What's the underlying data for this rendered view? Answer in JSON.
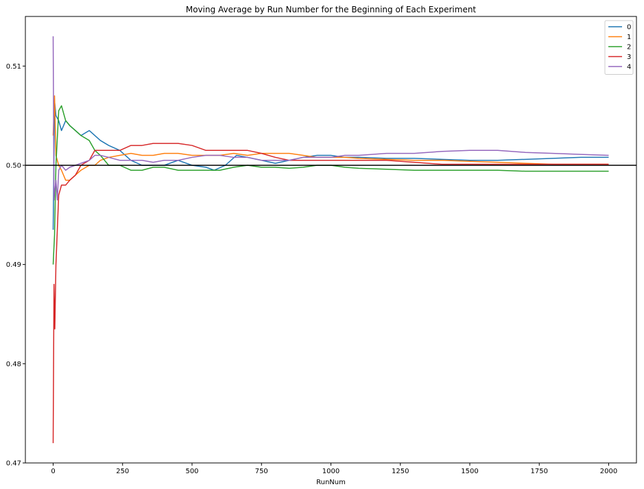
{
  "chart_data": {
    "type": "line",
    "title": "Moving Average by Run Number for the Beginning of Each Experiment",
    "xlabel": "RunNum",
    "ylabel": "",
    "xlim": [
      -100,
      2100
    ],
    "ylim": [
      0.47,
      0.515
    ],
    "xticks": [
      0,
      250,
      500,
      750,
      1000,
      1250,
      1500,
      1750,
      2000
    ],
    "xtick_labels": [
      "0",
      "250",
      "500",
      "750",
      "1000",
      "1250",
      "1500",
      "1750",
      "2000"
    ],
    "yticks": [
      0.47,
      0.48,
      0.49,
      0.5,
      0.51
    ],
    "ytick_labels": [
      "0.47",
      "0.48",
      "0.49",
      "0.50",
      "0.51"
    ],
    "reference_line": {
      "y": 0.5,
      "color": "#000000"
    },
    "grid": false,
    "legend_position": "top-right",
    "series": [
      {
        "name": "0",
        "color": "#1f77b4",
        "x": [
          0,
          5,
          10,
          20,
          30,
          45,
          60,
          80,
          100,
          130,
          150,
          170,
          200,
          240,
          280,
          320,
          360,
          400,
          450,
          500,
          550,
          580,
          620,
          660,
          700,
          750,
          800,
          850,
          900,
          950,
          1000,
          1050,
          1100,
          1200,
          1300,
          1400,
          1500,
          1600,
          1700,
          1800,
          1900,
          2000
        ],
        "y": [
          0.4935,
          0.5065,
          0.505,
          0.5045,
          0.5035,
          0.5045,
          0.504,
          0.5035,
          0.503,
          0.5035,
          0.503,
          0.5025,
          0.502,
          0.5015,
          0.5005,
          0.5,
          0.5,
          0.5,
          0.5005,
          0.5,
          0.4998,
          0.4995,
          0.5,
          0.501,
          0.5008,
          0.5005,
          0.5002,
          0.5005,
          0.5008,
          0.501,
          0.501,
          0.5008,
          0.5008,
          0.5007,
          0.5007,
          0.5006,
          0.5005,
          0.5005,
          0.5006,
          0.5007,
          0.5008,
          0.5008
        ]
      },
      {
        "name": "1",
        "color": "#ff7f0e",
        "x": [
          0,
          5,
          10,
          20,
          30,
          45,
          60,
          80,
          100,
          130,
          150,
          170,
          200,
          240,
          280,
          320,
          360,
          400,
          450,
          500,
          550,
          600,
          650,
          700,
          750,
          800,
          850,
          900,
          950,
          1000,
          1050,
          1100,
          1200,
          1300,
          1400,
          1500,
          1600,
          1700,
          1800,
          1900,
          2000
        ],
        "y": [
          0.503,
          0.507,
          0.501,
          0.5,
          0.4995,
          0.4985,
          0.4985,
          0.499,
          0.4995,
          0.5,
          0.5,
          0.5005,
          0.5008,
          0.501,
          0.5012,
          0.501,
          0.501,
          0.5012,
          0.5012,
          0.501,
          0.501,
          0.501,
          0.5012,
          0.501,
          0.5012,
          0.5012,
          0.5012,
          0.501,
          0.5008,
          0.5008,
          0.5008,
          0.5007,
          0.5006,
          0.5005,
          0.5005,
          0.5004,
          0.5003,
          0.5002,
          0.5001,
          0.5001,
          0.5001
        ]
      },
      {
        "name": "2",
        "color": "#2ca02c",
        "x": [
          0,
          5,
          10,
          20,
          30,
          45,
          60,
          80,
          100,
          130,
          150,
          170,
          200,
          240,
          280,
          320,
          360,
          400,
          450,
          500,
          550,
          600,
          650,
          700,
          750,
          800,
          850,
          900,
          950,
          1000,
          1050,
          1100,
          1200,
          1300,
          1400,
          1500,
          1600,
          1700,
          1800,
          1900,
          2000
        ],
        "y": [
          0.49,
          0.493,
          0.5,
          0.5055,
          0.506,
          0.5045,
          0.504,
          0.5035,
          0.503,
          0.5025,
          0.5015,
          0.501,
          0.5,
          0.5,
          0.4995,
          0.4995,
          0.4998,
          0.4998,
          0.4995,
          0.4995,
          0.4995,
          0.4995,
          0.4998,
          0.5,
          0.4998,
          0.4998,
          0.4997,
          0.4998,
          0.5,
          0.5,
          0.4998,
          0.4997,
          0.4996,
          0.4995,
          0.4995,
          0.4995,
          0.4995,
          0.4994,
          0.4994,
          0.4994,
          0.4994
        ]
      },
      {
        "name": "3",
        "color": "#d62728",
        "x": [
          0,
          3,
          6,
          10,
          15,
          20,
          30,
          45,
          60,
          80,
          100,
          130,
          150,
          170,
          200,
          240,
          280,
          320,
          360,
          400,
          450,
          500,
          550,
          600,
          650,
          700,
          750,
          800,
          850,
          900,
          950,
          1000,
          1050,
          1100,
          1200,
          1300,
          1400,
          1500,
          1600,
          1700,
          1800,
          1900,
          2000
        ],
        "y": [
          0.472,
          0.488,
          0.4835,
          0.49,
          0.4935,
          0.497,
          0.498,
          0.498,
          0.4985,
          0.499,
          0.5,
          0.5005,
          0.5015,
          0.5015,
          0.5015,
          0.5015,
          0.502,
          0.502,
          0.5022,
          0.5022,
          0.5022,
          0.502,
          0.5015,
          0.5015,
          0.5015,
          0.5015,
          0.5012,
          0.5008,
          0.5005,
          0.5005,
          0.5005,
          0.5005,
          0.5005,
          0.5005,
          0.5005,
          0.5003,
          0.5001,
          0.5001,
          0.5001,
          0.5001,
          0.5001,
          0.5001,
          0.5001
        ]
      },
      {
        "name": "4",
        "color": "#9467bd",
        "x": [
          0,
          3,
          6,
          10,
          15,
          20,
          30,
          45,
          60,
          80,
          100,
          130,
          150,
          170,
          200,
          240,
          280,
          320,
          360,
          400,
          450,
          500,
          550,
          600,
          650,
          700,
          750,
          800,
          850,
          900,
          950,
          1000,
          1050,
          1100,
          1200,
          1300,
          1400,
          1500,
          1600,
          1700,
          1800,
          1900,
          2000
        ],
        "y": [
          0.513,
          0.4965,
          0.4975,
          0.4985,
          0.4965,
          0.4995,
          0.5,
          0.4995,
          0.4998,
          0.5,
          0.5002,
          0.5005,
          0.501,
          0.501,
          0.5008,
          0.5005,
          0.5005,
          0.5005,
          0.5003,
          0.5005,
          0.5005,
          0.5008,
          0.501,
          0.501,
          0.5008,
          0.5008,
          0.5005,
          0.5005,
          0.5005,
          0.5008,
          0.5008,
          0.5008,
          0.501,
          0.501,
          0.5012,
          0.5012,
          0.5014,
          0.5015,
          0.5015,
          0.5013,
          0.5012,
          0.5011,
          0.501
        ]
      }
    ]
  }
}
